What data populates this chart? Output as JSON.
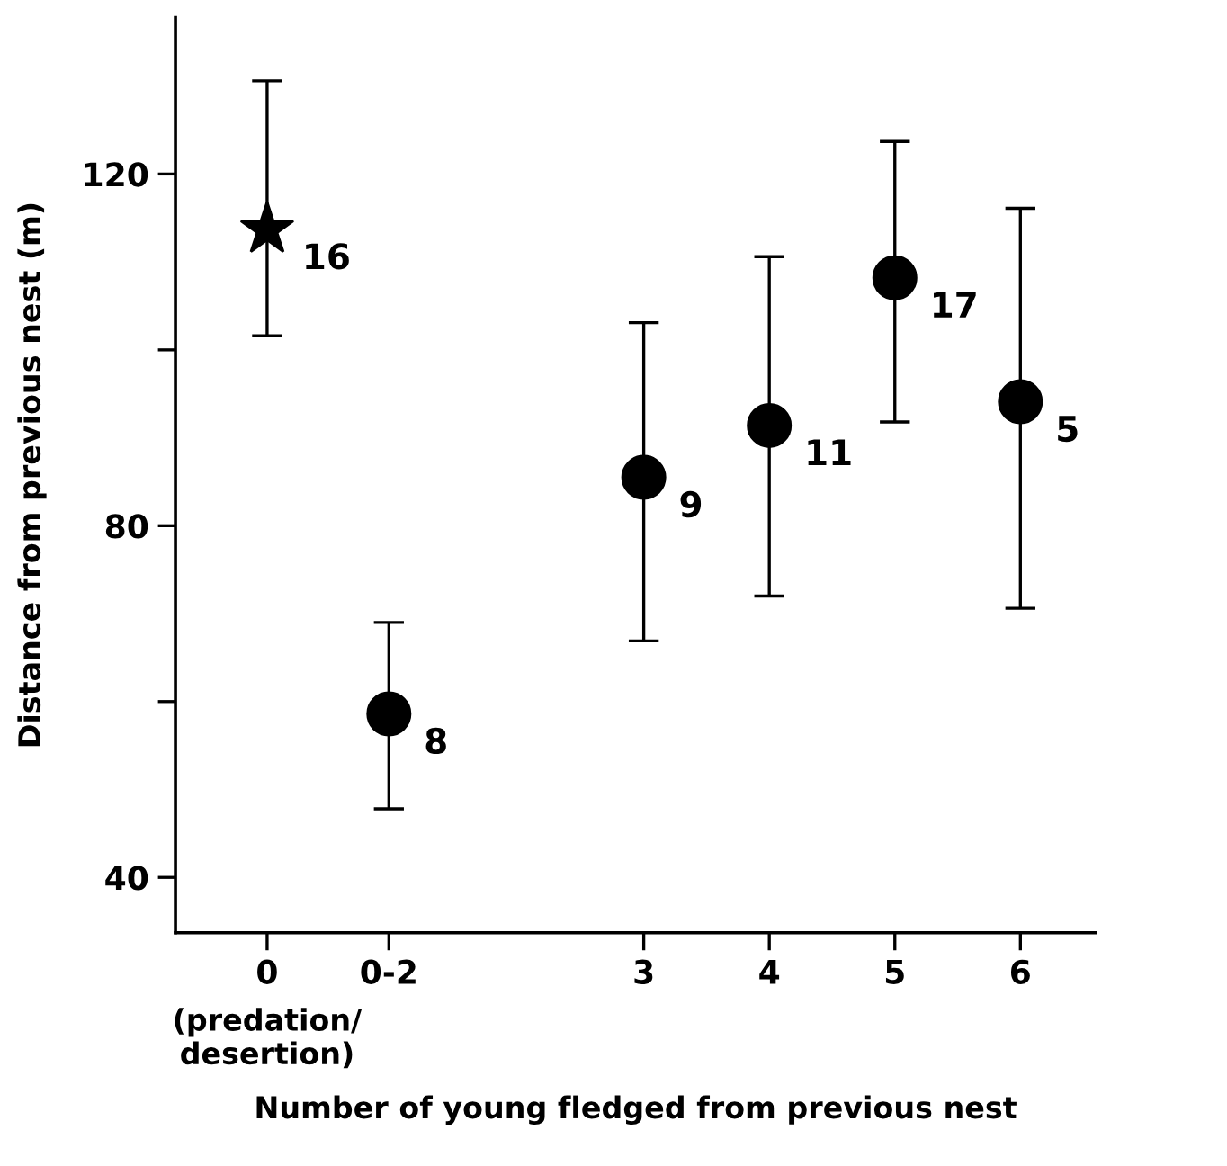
{
  "chart_data": {
    "type": "scatter",
    "xlabel": "Number of young fledged from previous nest",
    "ylabel": "Distance from previous nest (m)",
    "xlim": [
      -0.73,
      6.6
    ],
    "ylim": [
      33.7,
      137.8
    ],
    "xticks": [
      {
        "value": 0,
        "label": "0"
      },
      {
        "value": 0.97,
        "label": "0-2"
      },
      3,
      4,
      5,
      6
    ],
    "yticks": [
      40,
      {
        "value": 60,
        "label": null
      },
      80,
      {
        "value": 100,
        "label": null
      },
      120
    ],
    "series": [
      {
        "color": "#000000",
        "marker": "star",
        "x": [
          0
        ],
        "values": [
          113.7
        ],
        "errors": [
          [
            101.6,
            130.6
          ]
        ]
      },
      {
        "color": "#000000",
        "marker": "circle",
        "x": [
          0.97,
          3,
          4,
          5,
          6
        ],
        "values": [
          58.6,
          85.5,
          91.4,
          108.2,
          94.1
        ],
        "errors": [
          [
            47.8,
            69.0
          ],
          [
            66.9,
            103.1
          ],
          [
            72.0,
            110.6
          ],
          [
            91.8,
            123.7
          ],
          [
            70.6,
            116.1
          ]
        ]
      }
    ],
    "annotations": [
      {
        "text": "16",
        "x": 0,
        "y": 113.7
      },
      {
        "text": "8",
        "x": 0.97,
        "y": 58.6
      },
      {
        "text": "9",
        "x": 3,
        "y": 85.5
      },
      {
        "text": "11",
        "x": 4,
        "y": 91.4
      },
      {
        "text": "17",
        "x": 5,
        "y": 108.2
      },
      {
        "text": "5",
        "x": 6,
        "y": 94.1
      },
      "(predation/\ndesertion)"
    ],
    "grid": false,
    "legend": false
  }
}
